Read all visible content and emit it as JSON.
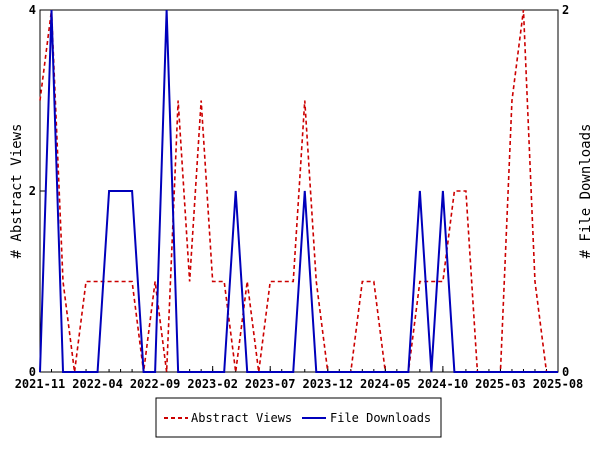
{
  "chart_data": {
    "type": "line",
    "categories": [
      "2021-11",
      "2021-12",
      "2022-01",
      "2022-02",
      "2022-03",
      "2022-04",
      "2022-05",
      "2022-06",
      "2022-07",
      "2022-08",
      "2022-09",
      "2022-10",
      "2022-11",
      "2022-12",
      "2023-01",
      "2023-02",
      "2023-03",
      "2023-04",
      "2023-05",
      "2023-06",
      "2023-07",
      "2023-08",
      "2023-09",
      "2023-10",
      "2023-11",
      "2023-12",
      "2024-01",
      "2024-02",
      "2024-03",
      "2024-04",
      "2024-05",
      "2024-06",
      "2024-07",
      "2024-08",
      "2024-09",
      "2024-10",
      "2024-11",
      "2024-12",
      "2025-01",
      "2025-02",
      "2025-03",
      "2025-04",
      "2025-05",
      "2025-06",
      "2025-07",
      "2025-08"
    ],
    "tick_labels": [
      "2021-11",
      "2022-04",
      "2022-09",
      "2023-02",
      "2023-07",
      "2023-12",
      "2024-05",
      "2024-10",
      "2025-03",
      "2025-08"
    ],
    "series": [
      {
        "name": "Abstract Views",
        "axis": "left",
        "color": "#cc0000",
        "style": "dashed",
        "values": [
          3,
          4,
          1,
          0,
          1,
          1,
          1,
          1,
          1,
          0,
          1,
          0,
          3,
          1,
          3,
          1,
          1,
          0,
          1,
          0,
          1,
          1,
          1,
          3,
          1,
          0,
          0,
          0,
          1,
          1,
          0,
          0,
          0,
          1,
          1,
          1,
          2,
          2,
          0,
          0,
          0,
          3,
          4,
          1,
          0,
          0
        ]
      },
      {
        "name": "File Downloads",
        "axis": "right",
        "color": "#0000bb",
        "style": "solid",
        "values": [
          0,
          2,
          0,
          0,
          0,
          0,
          1,
          1,
          1,
          0,
          0,
          2,
          0,
          0,
          0,
          0,
          0,
          1,
          0,
          0,
          0,
          0,
          0,
          1,
          0,
          0,
          0,
          0,
          0,
          0,
          0,
          0,
          0,
          1,
          0,
          1,
          0,
          0,
          0,
          0,
          0,
          0,
          0,
          0,
          0,
          0
        ]
      }
    ],
    "ylabel_left": "# Abstract Views",
    "ylabel_right": "# File Downloads",
    "ylim_left": [
      0,
      4
    ],
    "ylim_right": [
      0,
      2
    ],
    "yticks_left": [
      0,
      2,
      4
    ],
    "yticks_right": [
      0,
      2
    ],
    "grid": false,
    "legend_position": "bottom-center"
  }
}
